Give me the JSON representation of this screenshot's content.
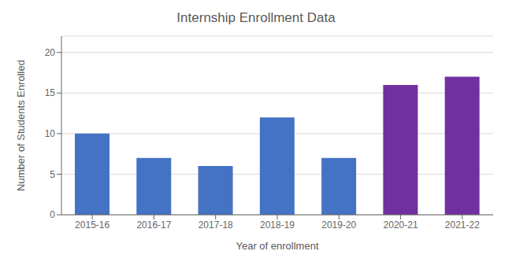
{
  "chart_data": {
    "type": "bar",
    "title": "Internship Enrollment Data",
    "xlabel": "Year of enrollment",
    "ylabel": "Number of Students Enrolled",
    "categories": [
      "2015-16",
      "2016-17",
      "2017-18",
      "2018-19",
      "2019-20",
      "2020-21",
      "2021-22"
    ],
    "values": [
      10,
      7,
      6,
      12,
      7,
      16,
      17
    ],
    "colors": [
      "#4472C4",
      "#4472C4",
      "#4472C4",
      "#4472C4",
      "#4472C4",
      "#7030A0",
      "#7030A0"
    ],
    "ylim": [
      0,
      22
    ],
    "yticks": [
      0,
      5,
      10,
      15,
      20
    ],
    "grid": true
  }
}
